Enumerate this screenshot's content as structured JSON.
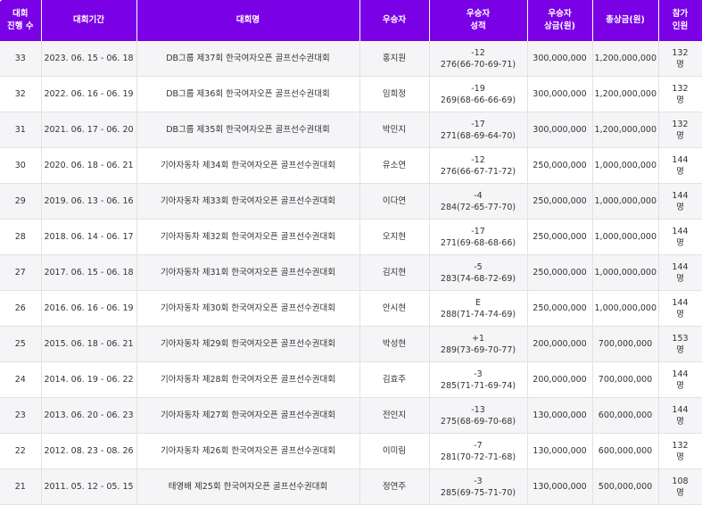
{
  "headers": {
    "round": "대회\n진행 수",
    "period": "대회기간",
    "name": "대회명",
    "winner": "우승자",
    "score": "우승자\n성적",
    "winner_prize": "우승자\n상금(원)",
    "total_prize": "총상금(원)",
    "participants": "참가\n인원"
  },
  "rows": [
    {
      "round": "33",
      "period": "2023. 06. 15 - 06. 18",
      "name": "DB그룹 제37회 한국여자오픈 골프선수권대회",
      "winner": "홍지원",
      "score_rel": "-12",
      "score_detail": "276(66-70-69-71)",
      "winner_prize": "300,000,000",
      "total_prize": "1,200,000,000",
      "participants_num": "132",
      "participants_unit": "명"
    },
    {
      "round": "32",
      "period": "2022. 06. 16 - 06. 19",
      "name": "DB그룹 제36회 한국여자오픈 골프선수권대회",
      "winner": "임희정",
      "score_rel": "-19",
      "score_detail": "269(68-66-66-69)",
      "winner_prize": "300,000,000",
      "total_prize": "1,200,000,000",
      "participants_num": "132",
      "participants_unit": "명"
    },
    {
      "round": "31",
      "period": "2021. 06. 17 - 06. 20",
      "name": "DB그룹 제35회 한국여자오픈 골프선수권대회",
      "winner": "박민지",
      "score_rel": "-17",
      "score_detail": "271(68-69-64-70)",
      "winner_prize": "300,000,000",
      "total_prize": "1,200,000,000",
      "participants_num": "132",
      "participants_unit": "명"
    },
    {
      "round": "30",
      "period": "2020. 06. 18 - 06. 21",
      "name": "기아자동차 제34회 한국여자오픈 골프선수권대회",
      "winner": "유소연",
      "score_rel": "-12",
      "score_detail": "276(66-67-71-72)",
      "winner_prize": "250,000,000",
      "total_prize": "1,000,000,000",
      "participants_num": "144",
      "participants_unit": "명"
    },
    {
      "round": "29",
      "period": "2019. 06. 13 - 06. 16",
      "name": "기아자동차 제33회 한국여자오픈 골프선수권대회",
      "winner": "이다연",
      "score_rel": "-4",
      "score_detail": "284(72-65-77-70)",
      "winner_prize": "250,000,000",
      "total_prize": "1,000,000,000",
      "participants_num": "144",
      "participants_unit": "명"
    },
    {
      "round": "28",
      "period": "2018. 06. 14 - 06. 17",
      "name": "기아자동차 제32회 한국여자오픈 골프선수권대회",
      "winner": "오지현",
      "score_rel": "-17",
      "score_detail": "271(69-68-68-66)",
      "winner_prize": "250,000,000",
      "total_prize": "1,000,000,000",
      "participants_num": "144",
      "participants_unit": "명"
    },
    {
      "round": "27",
      "period": "2017. 06. 15 - 06. 18",
      "name": "기아자동차 제31회 한국여자오픈 골프선수권대회",
      "winner": "김지현",
      "score_rel": "-5",
      "score_detail": "283(74-68-72-69)",
      "winner_prize": "250,000,000",
      "total_prize": "1,000,000,000",
      "participants_num": "144",
      "participants_unit": "명"
    },
    {
      "round": "26",
      "period": "2016. 06. 16 - 06. 19",
      "name": "기아자동차 제30회 한국여자오픈 골프선수권대회",
      "winner": "안시현",
      "score_rel": "E",
      "score_detail": "288(71-74-74-69)",
      "winner_prize": "250,000,000",
      "total_prize": "1,000,000,000",
      "participants_num": "144",
      "participants_unit": "명"
    },
    {
      "round": "25",
      "period": "2015. 06. 18 - 06. 21",
      "name": "기아자동차 제29회 한국여자오픈 골프선수권대회",
      "winner": "박성현",
      "score_rel": "+1",
      "score_detail": "289(73-69-70-77)",
      "winner_prize": "200,000,000",
      "total_prize": "700,000,000",
      "participants_num": "153",
      "participants_unit": "명"
    },
    {
      "round": "24",
      "period": "2014. 06. 19 - 06. 22",
      "name": "기아자동차 제28회 한국여자오픈 골프선수권대회",
      "winner": "김효주",
      "score_rel": "-3",
      "score_detail": "285(71-71-69-74)",
      "winner_prize": "200,000,000",
      "total_prize": "700,000,000",
      "participants_num": "144",
      "participants_unit": "명"
    },
    {
      "round": "23",
      "period": "2013. 06. 20 - 06. 23",
      "name": "기아자동차 제27회 한국여자오픈 골프선수권대회",
      "winner": "전인지",
      "score_rel": "-13",
      "score_detail": "275(68-69-70-68)",
      "winner_prize": "130,000,000",
      "total_prize": "600,000,000",
      "participants_num": "144",
      "participants_unit": "명"
    },
    {
      "round": "22",
      "period": "2012. 08. 23 - 08. 26",
      "name": "기아자동차 제26회 한국여자오픈 골프선수권대회",
      "winner": "이미림",
      "score_rel": "-7",
      "score_detail": "281(70-72-71-68)",
      "winner_prize": "130,000,000",
      "total_prize": "600,000,000",
      "participants_num": "132",
      "participants_unit": "명"
    },
    {
      "round": "21",
      "period": "2011. 05. 12 - 05. 15",
      "name": "태영배 제25회 한국여자오픈 골프선수권대회",
      "winner": "정연주",
      "score_rel": "-3",
      "score_detail": "285(69-75-71-70)",
      "winner_prize": "130,000,000",
      "total_prize": "500,000,000",
      "participants_num": "108",
      "participants_unit": "명"
    }
  ]
}
